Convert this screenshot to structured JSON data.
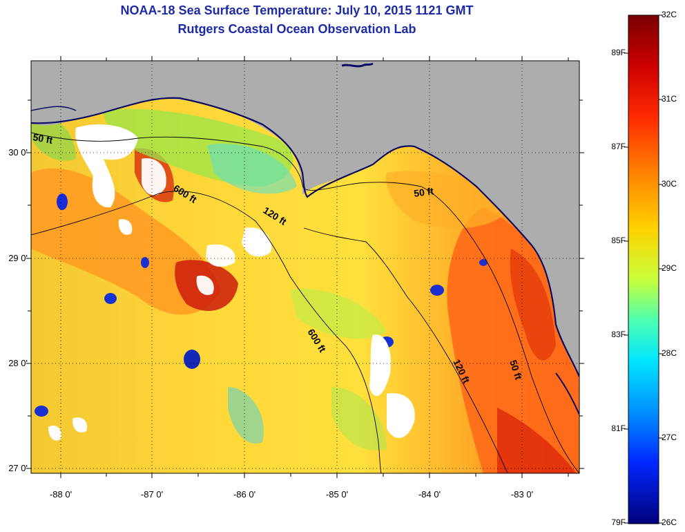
{
  "title": {
    "line1": "NOAA-18 Sea Surface Temperature:  July 10, 2015 1121 GMT",
    "line2": "Rutgers Coastal Ocean Observation Lab"
  },
  "lat_labels": [
    "30 0'",
    "29 0'",
    "28 0'",
    "27 0'"
  ],
  "lon_labels": [
    "-88 0'",
    "-87 0'",
    "-86 0'",
    "-85 0'",
    "-84 0'",
    "-83 0'"
  ],
  "contour_labels": [
    "50 ft",
    "600 ft",
    "120 ft",
    "50 ft",
    "600 ft",
    "120 ft",
    "50 ft"
  ],
  "colorbar": {
    "celsius": [
      "32C",
      "31C",
      "30C",
      "29C",
      "28C",
      "27C",
      "26C"
    ],
    "fahrenheit": [
      "89F",
      "87F",
      "85F",
      "83F",
      "81F",
      "79F"
    ]
  },
  "colors": {
    "land": "#adadad",
    "title": "#1c2aa6",
    "cloud": "#ffffff"
  }
}
